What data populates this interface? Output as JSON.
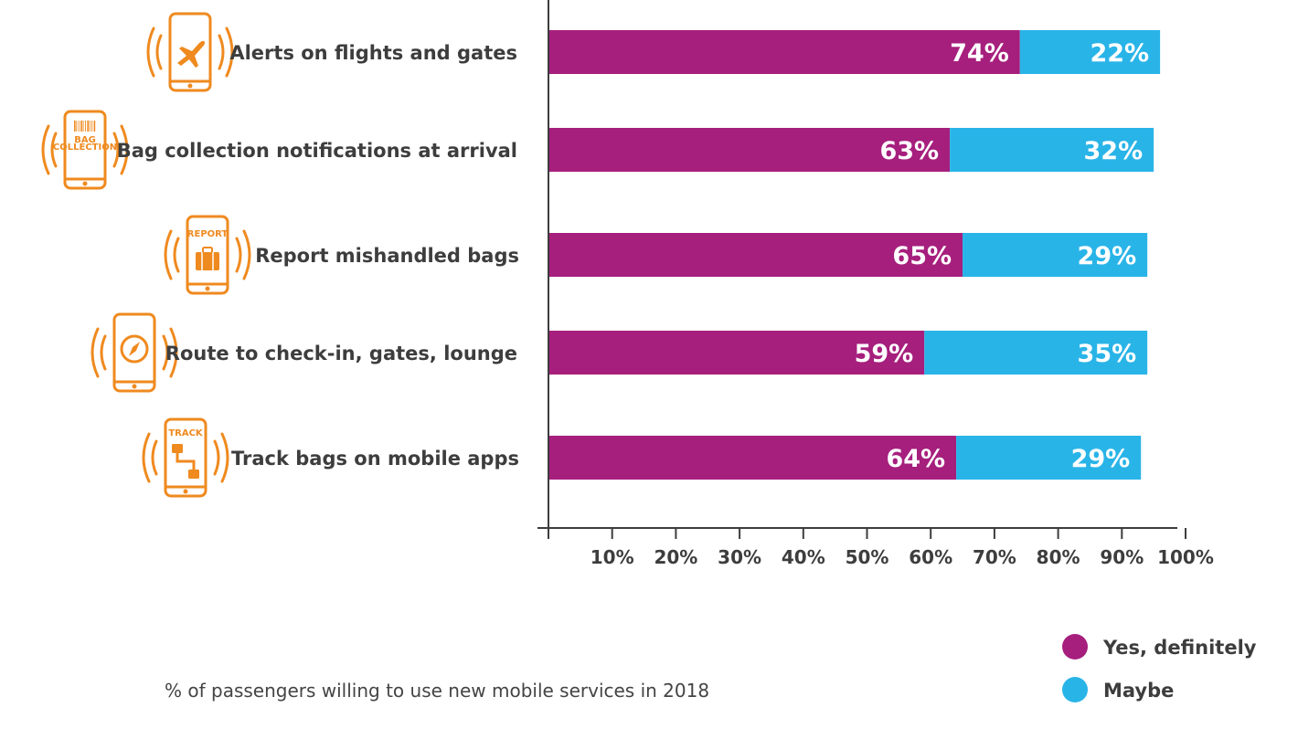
{
  "chart_data": {
    "type": "bar",
    "orientation": "horizontal",
    "stacked": true,
    "categories": [
      "Alerts on flights and gates",
      "Bag collection notifications at arrival",
      "Report mishandled bags",
      "Route to check-in, gates, lounge",
      "Track bags on mobile apps"
    ],
    "series": [
      {
        "name": "Yes, definitely",
        "color": "#a61f7d",
        "values": [
          74,
          63,
          65,
          59,
          64
        ]
      },
      {
        "name": "Maybe",
        "color": "#29b4e8",
        "values": [
          22,
          32,
          29,
          35,
          29
        ]
      }
    ],
    "value_labels": {
      "yes": [
        "74%",
        "63%",
        "65%",
        "59%",
        "64%"
      ],
      "maybe": [
        "22%",
        "32%",
        "29%",
        "35%",
        "29%"
      ]
    },
    "xticks": [
      "10%",
      "20%",
      "30%",
      "40%",
      "50%",
      "60%",
      "70%",
      "80%",
      "90%",
      "100%"
    ],
    "xlim": [
      0,
      100
    ],
    "legend_position": "bottom-right",
    "caption": "% of passengers willing to use new mobile services in 2018",
    "icons": [
      "airplane-phone-icon",
      "bag-collection-phone-icon",
      "report-bag-phone-icon",
      "compass-phone-icon",
      "track-bag-phone-icon"
    ],
    "icon_text": {
      "bag": "BAG",
      "collection": "COLLECTION",
      "report": "REPORT",
      "track": "TRACK"
    },
    "icon_color": "#ef8a1f",
    "axis_color": "#3d3d3d"
  }
}
